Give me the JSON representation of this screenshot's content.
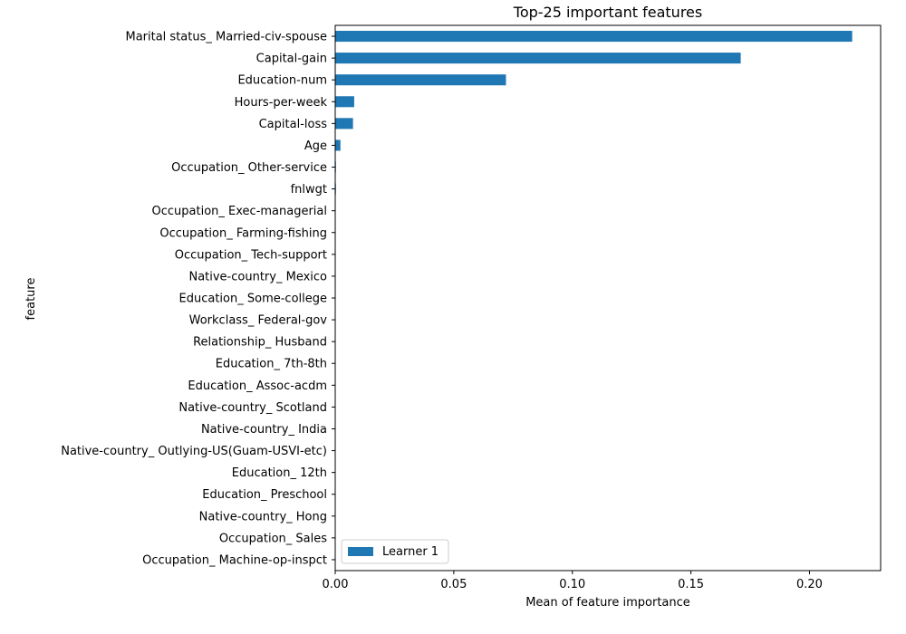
{
  "chart_data": {
    "type": "bar",
    "orientation": "horizontal",
    "title": "Top-25 important features",
    "xlabel": "Mean of feature importance",
    "ylabel": "feature",
    "xlim": [
      0,
      0.23
    ],
    "x_ticks": [
      0.0,
      0.05,
      0.1,
      0.15,
      0.2
    ],
    "x_tick_labels": [
      "0.00",
      "0.05",
      "0.10",
      "0.15",
      "0.20"
    ],
    "legend_position": "lower-left",
    "grid": false,
    "categories": [
      "Marital status_ Married-civ-spouse",
      "Capital-gain",
      "Education-num",
      "Hours-per-week",
      "Capital-loss",
      "Age",
      "Occupation_ Other-service",
      "fnlwgt",
      "Occupation_ Exec-managerial",
      "Occupation_ Farming-fishing",
      "Occupation_ Tech-support",
      "Native-country_ Mexico",
      "Education_ Some-college",
      "Workclass_ Federal-gov",
      "Relationship_ Husband",
      "Education_ 7th-8th",
      "Education_ Assoc-acdm",
      "Native-country_ Scotland",
      "Native-country_ India",
      "Native-country_ Outlying-US(Guam-USVI-etc)",
      "Education_ 12th",
      "Education_ Preschool",
      "Native-country_ Hong",
      "Occupation_ Sales",
      "Occupation_ Machine-op-inspct"
    ],
    "series": [
      {
        "name": "Learner 1",
        "color": "#1f77b4",
        "values": [
          0.218,
          0.171,
          0.072,
          0.008,
          0.0075,
          0.0022,
          0.0003,
          0.0003,
          0.0002,
          0.0002,
          0.0002,
          0.0002,
          0.0001,
          0.0001,
          0.0001,
          0.0001,
          0.0001,
          0.0001,
          0.0001,
          0.0001,
          0.0001,
          0.0001,
          0.0001,
          0.0001,
          0.0001
        ]
      }
    ]
  }
}
